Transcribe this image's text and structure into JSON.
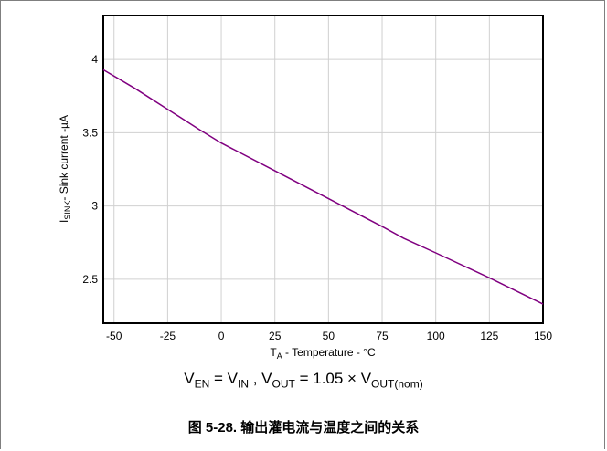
{
  "chart_data": {
    "type": "line",
    "ylabel": {
      "main": "I",
      "sub": "SINK",
      "rest": "- Sink current -µA"
    },
    "xlabel": {
      "main": "T",
      "sub": "A",
      "rest": " - Temperature - °C"
    },
    "x_ticks": [
      -50,
      -25,
      0,
      25,
      50,
      75,
      100,
      125,
      150
    ],
    "y_ticks": [
      2.5,
      3,
      3.5,
      4
    ],
    "xlim": [
      -55,
      150
    ],
    "ylim": [
      2.2,
      4.3
    ],
    "grid": true,
    "series": [
      {
        "color": "#800080",
        "x": [
          -55,
          -40,
          -25,
          -10,
          0,
          25,
          50,
          75,
          85,
          100,
          125,
          150
        ],
        "y": [
          3.93,
          3.8,
          3.66,
          3.52,
          3.43,
          3.24,
          3.05,
          2.86,
          2.78,
          2.68,
          2.51,
          2.33
        ]
      }
    ]
  },
  "condition": {
    "v_en": "V",
    "v_en_sub": "EN",
    "eq1": " = V",
    "v_in_sub": "IN",
    "sep": " , V",
    "v_out_sub": "OUT",
    "eq2": " = 1.05 × V",
    "v_out_nom_sub": "OUT(nom)"
  },
  "caption": "图 5-28. 输出灌电流与温度之间的关系"
}
